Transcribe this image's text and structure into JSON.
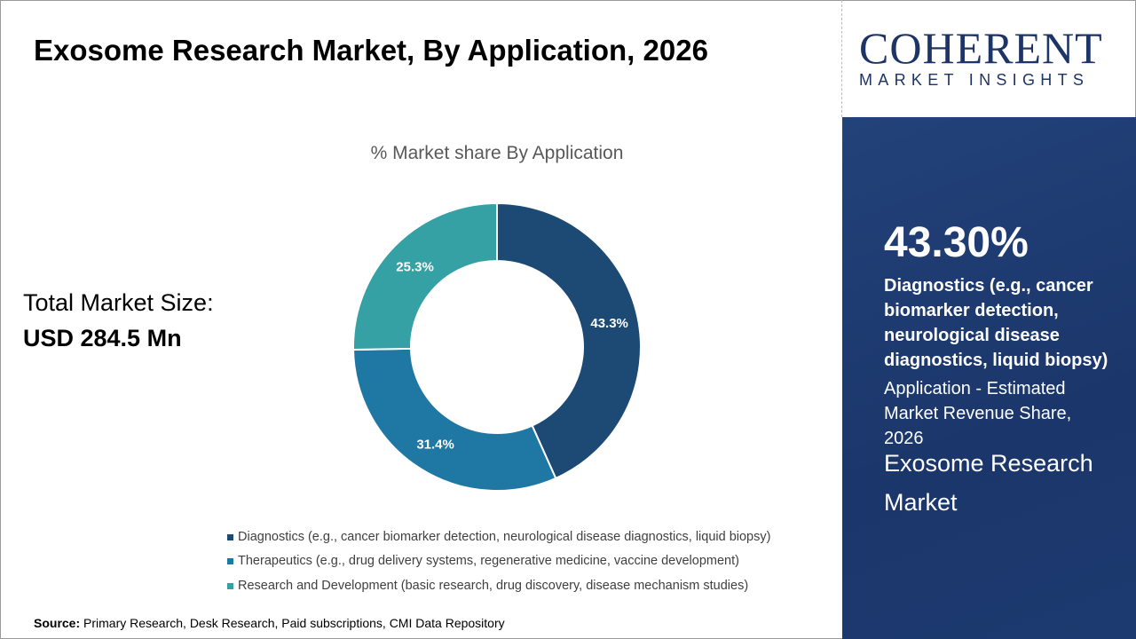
{
  "title": "Exosome Research Market, By Application, 2026",
  "logo": {
    "line1": "COHERENT",
    "line2": "MARKET INSIGHTS"
  },
  "total": {
    "label": "Total Market Size:",
    "value": "USD 284.5 Mn"
  },
  "highlight": {
    "percent": "43.30%",
    "segment": "Diagnostics (e.g., cancer biomarker detection, neurological disease diagnostics, liquid biopsy)",
    "description": "Application - Estimated Market Revenue Share, 2026",
    "market": "Exosome Research Market"
  },
  "source": {
    "label": "Source:",
    "text": " Primary Research, Desk Research, Paid subscriptions, CMI Data Repository"
  },
  "chart_data": {
    "type": "pie",
    "subtitle": "% Market share By Application",
    "legend_position": "bottom",
    "categories": [
      "Diagnostics (e.g., cancer biomarker detection, neurological disease diagnostics, liquid biopsy)",
      "Therapeutics (e.g., drug delivery systems, regenerative medicine, vaccine development)",
      "Research and Development (basic research, drug discovery, disease mechanism studies)"
    ],
    "values": [
      43.3,
      31.4,
      25.3
    ],
    "labels": [
      "43.3%",
      "31.4%",
      "25.3%"
    ],
    "colors": [
      "#1c4a74",
      "#1f77a4",
      "#35a1a5"
    ]
  }
}
